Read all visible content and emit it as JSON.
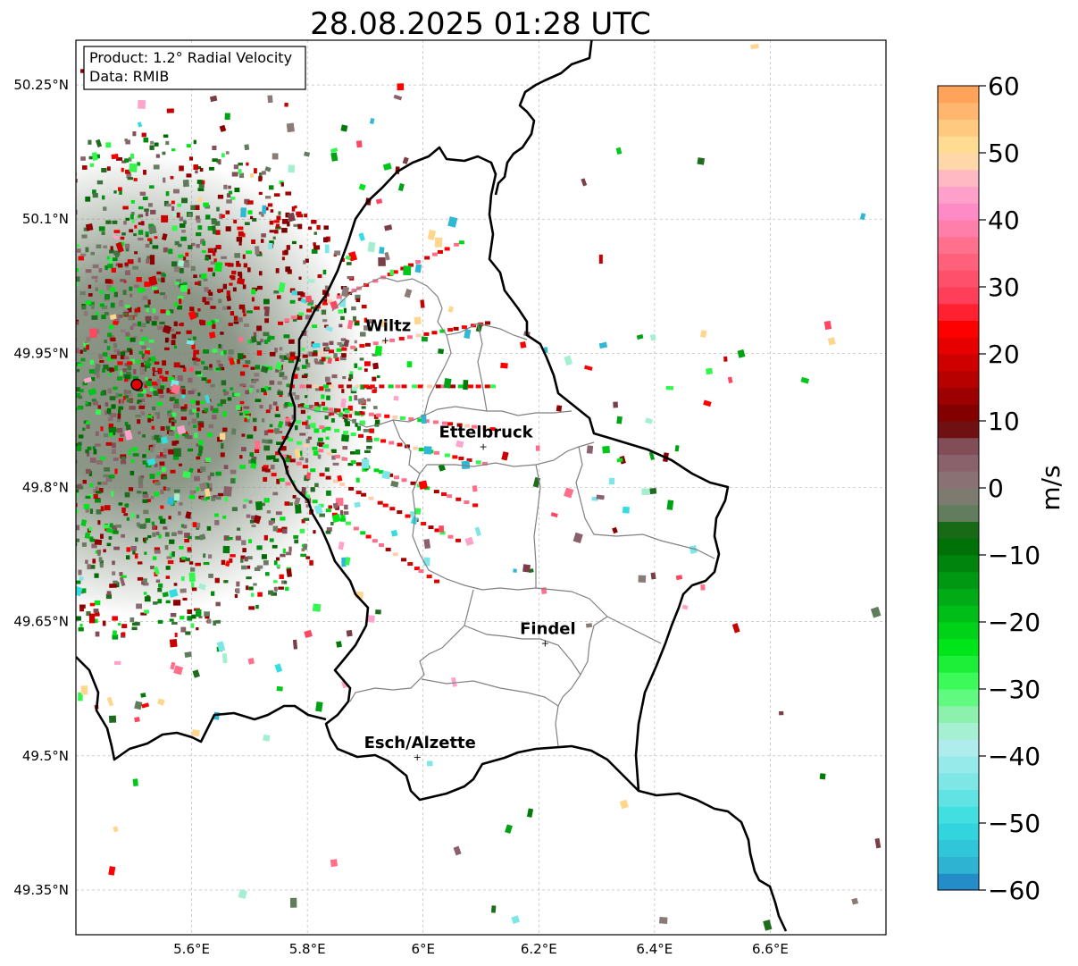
{
  "title": "28.08.2025 01:28 UTC",
  "info": {
    "product": "Product: 1.2° Radial Velocity",
    "data": "Data: RMIB"
  },
  "map": {
    "lon_range": [
      5.4,
      6.8
    ],
    "lat_range": [
      49.3,
      50.3
    ],
    "x_ticks": [
      {
        "value": 5.6,
        "label": "5.6°E"
      },
      {
        "value": 5.8,
        "label": "5.8°E"
      },
      {
        "value": 6.0,
        "label": "6°E"
      },
      {
        "value": 6.2,
        "label": "6.2°E"
      },
      {
        "value": 6.4,
        "label": "6.4°E"
      },
      {
        "value": 6.6,
        "label": "6.6°E"
      }
    ],
    "y_ticks": [
      {
        "value": 50.25,
        "label": "50.25°N"
      },
      {
        "value": 50.1,
        "label": "50.1°N"
      },
      {
        "value": 49.95,
        "label": "49.95°N"
      },
      {
        "value": 49.8,
        "label": "49.8°N"
      },
      {
        "value": 49.65,
        "label": "49.65°N"
      },
      {
        "value": 49.5,
        "label": "49.5°N"
      },
      {
        "value": 49.35,
        "label": "49.35°N"
      }
    ],
    "grid": true,
    "radar_site": {
      "lon": 5.505,
      "lat": 49.915
    },
    "cities": [
      {
        "name": "Wiltz",
        "lon": 5.935,
        "lat": 49.966
      },
      {
        "name": "Ettelbruck",
        "lon": 6.104,
        "lat": 49.847
      },
      {
        "name": "Findel",
        "lon": 6.211,
        "lat": 49.627
      },
      {
        "name": "Esch/Alzette",
        "lon": 5.99,
        "lat": 49.5
      }
    ]
  },
  "colorbar": {
    "label": "m/s",
    "range": [
      -60,
      60
    ],
    "ticks": [
      {
        "value": 60,
        "label": "60"
      },
      {
        "value": 50,
        "label": "50"
      },
      {
        "value": 40,
        "label": "40"
      },
      {
        "value": 30,
        "label": "30"
      },
      {
        "value": 20,
        "label": "20"
      },
      {
        "value": 10,
        "label": "10"
      },
      {
        "value": 0,
        "label": "0"
      },
      {
        "value": -10,
        "label": "−10"
      },
      {
        "value": -20,
        "label": "−20"
      },
      {
        "value": -30,
        "label": "−30"
      },
      {
        "value": -40,
        "label": "−40"
      },
      {
        "value": -50,
        "label": "−50"
      },
      {
        "value": -60,
        "label": "−60"
      }
    ],
    "stops": [
      {
        "v": -60,
        "c": "#1f78c1"
      },
      {
        "v": -56,
        "c": "#2fb7d4"
      },
      {
        "v": -50,
        "c": "#33dde0"
      },
      {
        "v": -44,
        "c": "#7de6e6"
      },
      {
        "v": -38,
        "c": "#b6eeee"
      },
      {
        "v": -34,
        "c": "#8ff0b0"
      },
      {
        "v": -30,
        "c": "#4cff6a"
      },
      {
        "v": -24,
        "c": "#00e61a"
      },
      {
        "v": -18,
        "c": "#00b818"
      },
      {
        "v": -12,
        "c": "#008a10"
      },
      {
        "v": -7,
        "c": "#006300"
      },
      {
        "v": -4,
        "c": "#5f7d5c"
      },
      {
        "v": 0,
        "c": "#8a7a78"
      },
      {
        "v": 4,
        "c": "#8a606a"
      },
      {
        "v": 8,
        "c": "#7a3e48"
      },
      {
        "v": 9,
        "c": "#6b0000"
      },
      {
        "v": 16,
        "c": "#b50000"
      },
      {
        "v": 24,
        "c": "#ff0000"
      },
      {
        "v": 28,
        "c": "#ff3a55"
      },
      {
        "v": 36,
        "c": "#ff6f8a"
      },
      {
        "v": 42,
        "c": "#ff8fcf"
      },
      {
        "v": 46,
        "c": "#ffb6c6"
      },
      {
        "v": 50,
        "c": "#ffe69a"
      },
      {
        "v": 56,
        "c": "#ffb870"
      },
      {
        "v": 60,
        "c": "#ff9a50"
      }
    ]
  }
}
